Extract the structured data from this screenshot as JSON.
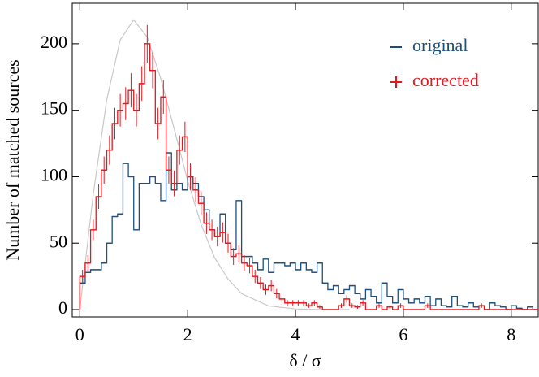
{
  "chart_data": {
    "type": "histogram",
    "xlabel": "δ / σ",
    "ylabel": "Number of matched sources",
    "xlim": [
      -0.14,
      8.5
    ],
    "ylim": [
      -5.5,
      230.5
    ],
    "xticks": [
      0,
      2,
      4,
      6,
      8
    ],
    "yticks": [
      0,
      50,
      100,
      150,
      200
    ],
    "legend": "upper right",
    "bins": [
      0,
      0.1,
      0.2,
      0.3,
      0.4,
      0.5,
      0.6,
      0.7,
      0.8,
      0.9,
      1,
      1.1,
      1.2,
      1.3,
      1.4,
      1.5,
      1.6,
      1.7,
      1.8,
      1.9,
      2,
      2.1,
      2.2,
      2.3,
      2.4,
      2.5,
      2.6,
      2.7,
      2.8,
      2.9,
      3,
      3.1,
      3.2,
      3.3,
      3.4,
      3.5,
      3.6,
      3.7,
      3.8,
      3.9,
      4,
      4.1,
      4.2,
      4.3,
      4.4,
      4.5,
      4.6,
      4.7,
      4.8,
      4.9,
      5,
      5.1,
      5.2,
      5.3,
      5.4,
      5.5,
      5.6,
      5.7,
      5.8,
      5.9,
      6,
      6.1,
      6.2,
      6.3,
      6.4,
      6.5,
      6.6,
      6.7,
      6.8,
      6.9,
      7,
      7.1,
      7.2,
      7.3,
      7.4,
      7.5,
      7.6,
      7.7,
      7.8,
      7.9,
      8,
      8.1,
      8.2,
      8.3,
      8.4,
      8.5
    ],
    "series": [
      {
        "name": "original",
        "color": "#1d4f7e",
        "values": [
          20,
          28,
          30,
          30,
          35,
          50,
          70,
          72,
          110,
          100,
          60,
          95,
          95,
          100,
          95,
          82,
          118,
          90,
          95,
          90,
          100,
          95,
          85,
          75,
          60,
          55,
          72,
          50,
          45,
          82,
          40,
          40,
          35,
          30,
          38,
          28,
          35,
          35,
          33,
          35,
          30,
          35,
          30,
          28,
          35,
          20,
          15,
          18,
          12,
          15,
          18,
          12,
          8,
          15,
          10,
          5,
          20,
          10,
          5,
          15,
          8,
          5,
          8,
          5,
          10,
          3,
          8,
          3,
          2,
          10,
          3,
          2,
          5,
          2,
          3,
          0,
          5,
          3,
          2,
          0,
          3,
          1,
          0,
          2,
          0
        ]
      },
      {
        "name": "corrected",
        "color": "#e8161e",
        "values": [
          25,
          35,
          60,
          85,
          105,
          120,
          140,
          150,
          155,
          165,
          150,
          170,
          200,
          180,
          140,
          160,
          105,
          95,
          120,
          130,
          100,
          90,
          80,
          65,
          60,
          55,
          58,
          50,
          40,
          42,
          35,
          33,
          25,
          20,
          15,
          18,
          12,
          8,
          5,
          5,
          5,
          5,
          3,
          5,
          2,
          0,
          0,
          0,
          3,
          8,
          3,
          2,
          5,
          0,
          0,
          3,
          0,
          2,
          0,
          3,
          0,
          0,
          0,
          0,
          3,
          0,
          0,
          0,
          0,
          0,
          0,
          0,
          0,
          0,
          3,
          0,
          0,
          0,
          0,
          0,
          0,
          0,
          0,
          0,
          0
        ],
        "errors": [
          5,
          5.9,
          7.7,
          9.2,
          10.2,
          11,
          11.8,
          12.2,
          12.4,
          12.8,
          12.2,
          13,
          14.1,
          13.4,
          11.8,
          12.6,
          10.2,
          9.7,
          11,
          11.4,
          10,
          9.5,
          8.9,
          8.1,
          7.7,
          7.4,
          7.6,
          7.1,
          6.3,
          6.5,
          5.9,
          5.7,
          5,
          4.5,
          3.9,
          4.2,
          3.5,
          2.8,
          2.2,
          2.2,
          2.2,
          2.2,
          1.7,
          2.2,
          1.4,
          0,
          0,
          0,
          1.7,
          2.8,
          1.7,
          1.4,
          2.2,
          0,
          0,
          1.7,
          0,
          1.4,
          0,
          1.7,
          0,
          0,
          0,
          0,
          1.7,
          0,
          0,
          0,
          0,
          0,
          0,
          0,
          0,
          0,
          1.7,
          0,
          0,
          0,
          0,
          0,
          0,
          0,
          0,
          0,
          0
        ]
      }
    ],
    "curve": {
      "color": "#c8c8c8",
      "x": [
        0,
        0.25,
        0.5,
        0.75,
        1,
        1.25,
        1.5,
        1.75,
        2,
        2.25,
        2.5,
        2.75,
        3,
        3.5,
        4,
        4.5,
        5
      ],
      "values": [
        0,
        87,
        158,
        203,
        218,
        205,
        174,
        136,
        97,
        64,
        39,
        23,
        12,
        2.8,
        0.5,
        0,
        0
      ]
    }
  }
}
